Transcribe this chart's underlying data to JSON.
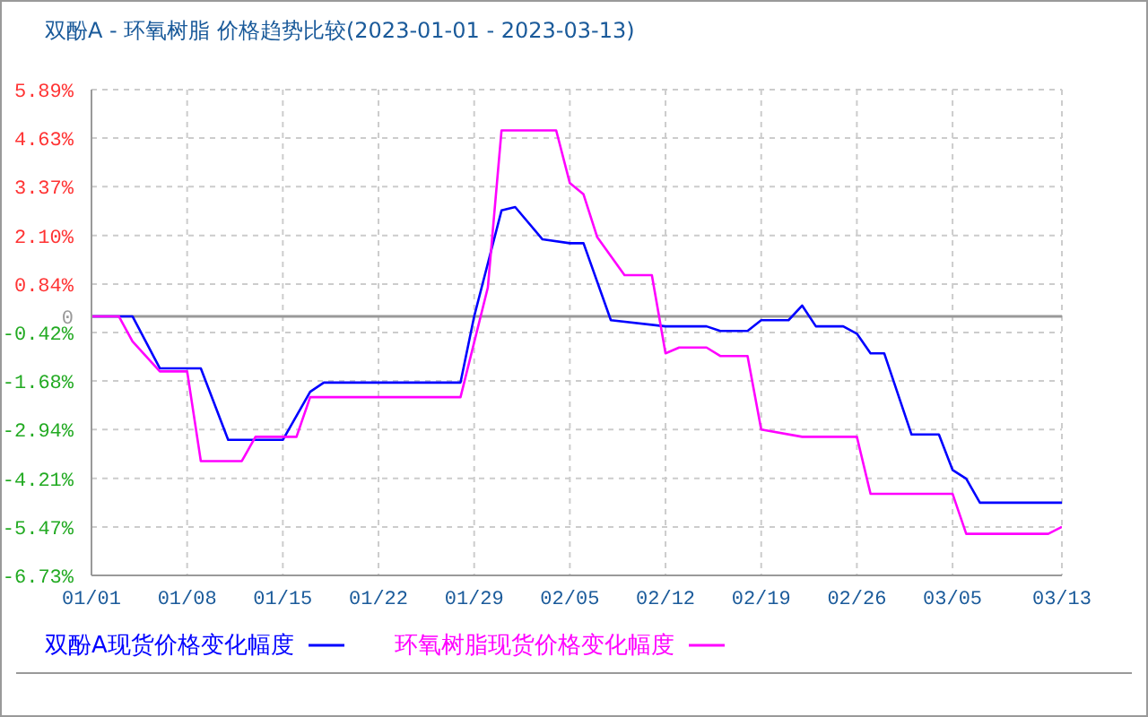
{
  "chart_data": {
    "type": "line",
    "title": "双酚A - 环氧树脂 价格趋势比较(2023-01-01 - 2023-03-13)",
    "series": [
      {
        "name": "双酚A现货价格变化幅度",
        "color": "#0000ff",
        "x": [
          "2023-01-01",
          "2023-01-04",
          "2023-01-06",
          "2023-01-09",
          "2023-01-11",
          "2023-01-15",
          "2023-01-17",
          "2023-01-18",
          "2023-01-28",
          "2023-01-29",
          "2023-01-31",
          "2023-02-01",
          "2023-02-03",
          "2023-02-05",
          "2023-02-06",
          "2023-02-08",
          "2023-02-12",
          "2023-02-15",
          "2023-02-16",
          "2023-02-18",
          "2023-02-19",
          "2023-02-21",
          "2023-02-22",
          "2023-02-23",
          "2023-02-25",
          "2023-02-26",
          "2023-02-27",
          "2023-02-28",
          "2023-03-02",
          "2023-03-04",
          "2023-03-05",
          "2023-03-06",
          "2023-03-07",
          "2023-03-13"
        ],
        "values": [
          0,
          0,
          -1.35,
          -1.35,
          -3.21,
          -3.21,
          -1.96,
          -1.72,
          -1.72,
          0,
          2.75,
          2.84,
          2.0,
          1.9,
          1.9,
          -0.1,
          -0.26,
          -0.26,
          -0.38,
          -0.38,
          -0.1,
          -0.1,
          0.28,
          -0.26,
          -0.26,
          -0.45,
          -0.96,
          -0.96,
          -3.07,
          -3.07,
          -3.99,
          -4.22,
          -4.84,
          -4.84
        ]
      },
      {
        "name": "环氧树脂现货价格变化幅度",
        "color": "#ff00ff",
        "x": [
          "2023-01-01",
          "2023-01-03",
          "2023-01-04",
          "2023-01-06",
          "2023-01-08",
          "2023-01-09",
          "2023-01-12",
          "2023-01-13",
          "2023-01-16",
          "2023-01-17",
          "2023-01-28",
          "2023-01-30",
          "2023-01-31",
          "2023-02-04",
          "2023-02-05",
          "2023-02-06",
          "2023-02-07",
          "2023-02-09",
          "2023-02-11",
          "2023-02-12",
          "2023-02-13",
          "2023-02-15",
          "2023-02-16",
          "2023-02-18",
          "2023-02-19",
          "2023-02-22",
          "2023-02-26",
          "2023-02-27",
          "2023-03-05",
          "2023-03-06",
          "2023-03-12",
          "2023-03-13"
        ],
        "values": [
          0,
          0,
          -0.65,
          -1.43,
          -1.43,
          -3.76,
          -3.76,
          -3.13,
          -3.13,
          -2.1,
          -2.1,
          0.75,
          4.83,
          4.83,
          3.46,
          3.17,
          2.06,
          1.07,
          1.07,
          -0.96,
          -0.81,
          -0.81,
          -1.03,
          -1.03,
          -2.94,
          -3.13,
          -3.13,
          -4.61,
          -4.61,
          -5.65,
          -5.65,
          -5.47
        ]
      }
    ],
    "xlim": [
      "2023-01-01",
      "2023-03-13"
    ],
    "xticks": [
      {
        "value": "2023-01-01",
        "label": "01/01"
      },
      {
        "value": "2023-01-08",
        "label": "01/08"
      },
      {
        "value": "2023-01-15",
        "label": "01/15"
      },
      {
        "value": "2023-01-22",
        "label": "01/22"
      },
      {
        "value": "2023-01-29",
        "label": "01/29"
      },
      {
        "value": "2023-02-05",
        "label": "02/05"
      },
      {
        "value": "2023-02-12",
        "label": "02/12"
      },
      {
        "value": "2023-02-19",
        "label": "02/19"
      },
      {
        "value": "2023-02-26",
        "label": "02/26"
      },
      {
        "value": "2023-03-05",
        "label": "03/05"
      },
      {
        "value": "2023-03-13",
        "label": "03/13"
      }
    ],
    "ylim": [
      -6.73,
      5.89
    ],
    "yticks": [
      {
        "value": -6.73,
        "label": "-6.73%"
      },
      {
        "value": -5.47,
        "label": "-5.47%"
      },
      {
        "value": -4.21,
        "label": "-4.21%"
      },
      {
        "value": -2.94,
        "label": "-2.94%"
      },
      {
        "value": -1.68,
        "label": "-1.68%"
      },
      {
        "value": -0.42,
        "label": "-0.42%"
      },
      0,
      {
        "value": 0.84,
        "label": "0.84%"
      },
      {
        "value": 2.1,
        "label": "2.10%"
      },
      {
        "value": 3.37,
        "label": "3.37%"
      },
      {
        "value": 4.63,
        "label": "4.63%"
      },
      {
        "value": 5.89,
        "label": "5.89%"
      }
    ],
    "ref_lines": [
      {
        "axis": "y",
        "value": 0,
        "color": "#999999"
      }
    ],
    "grid": true,
    "legend": "bottom",
    "marker": "none",
    "line_style": "solid"
  }
}
